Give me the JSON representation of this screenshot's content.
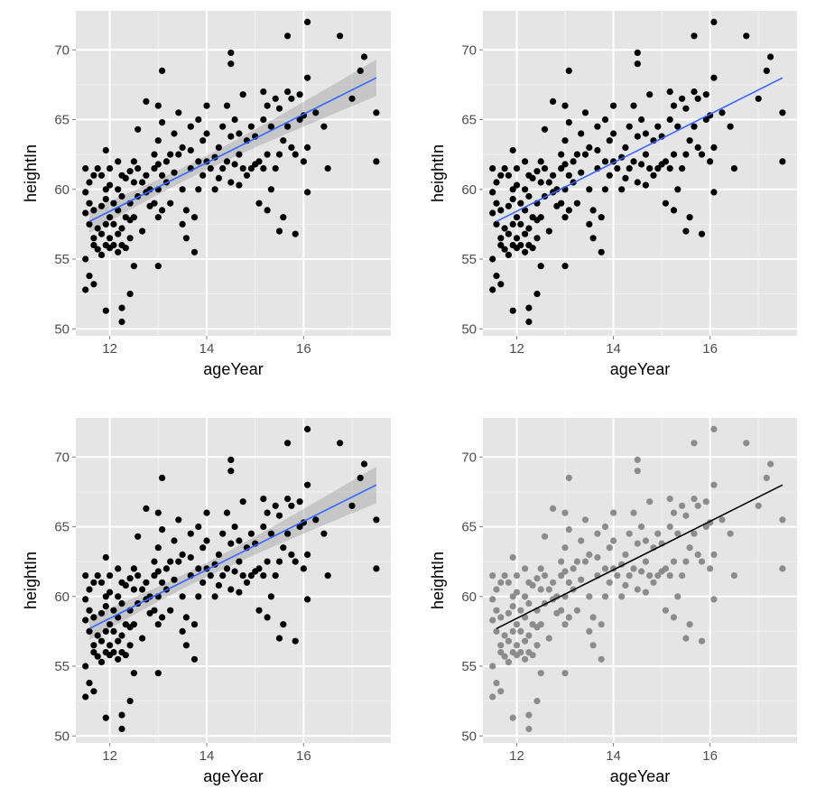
{
  "chart_data": [
    {
      "type": "scatter",
      "panel": "top-left",
      "xlabel": "ageYear",
      "ylabel": "heightIn",
      "xlim": [
        11.3,
        17.8
      ],
      "ylim": [
        49.5,
        72.8
      ],
      "x_ticks": [
        12,
        14,
        16
      ],
      "y_ticks": [
        50,
        55,
        60,
        65,
        70
      ],
      "grid": true,
      "point_color": "#000000",
      "trend_line": {
        "x": [
          11.58,
          17.5
        ],
        "y": [
          57.7,
          68.0
        ],
        "color": "#3366FF"
      },
      "confidence_band": true,
      "band_color": "#999999",
      "panel_background": "#E5E5E5"
    },
    {
      "type": "scatter",
      "panel": "top-right",
      "xlabel": "ageYear",
      "ylabel": "heightIn",
      "xlim": [
        11.3,
        17.8
      ],
      "ylim": [
        49.5,
        72.8
      ],
      "x_ticks": [
        12,
        14,
        16
      ],
      "y_ticks": [
        50,
        55,
        60,
        65,
        70
      ],
      "grid": true,
      "point_color": "#000000",
      "trend_line": {
        "x": [
          11.58,
          17.5
        ],
        "y": [
          57.7,
          68.0
        ],
        "color": "#3366FF"
      },
      "confidence_band": false,
      "panel_background": "#E5E5E5"
    },
    {
      "type": "scatter",
      "panel": "bottom-left",
      "xlabel": "ageYear",
      "ylabel": "heightIn",
      "xlim": [
        11.3,
        17.8
      ],
      "ylim": [
        49.5,
        72.8
      ],
      "x_ticks": [
        12,
        14,
        16
      ],
      "y_ticks": [
        50,
        55,
        60,
        65,
        70
      ],
      "grid": true,
      "point_color": "#000000",
      "trend_line": {
        "x": [
          11.58,
          17.5
        ],
        "y": [
          57.7,
          68.0
        ],
        "color": "#3366FF"
      },
      "confidence_band": true,
      "band_color": "#999999",
      "panel_background": "#E5E5E5"
    },
    {
      "type": "scatter",
      "panel": "bottom-right",
      "xlabel": "ageYear",
      "ylabel": "heightIn",
      "xlim": [
        11.3,
        17.8
      ],
      "ylim": [
        49.5,
        72.8
      ],
      "x_ticks": [
        12,
        14,
        16
      ],
      "y_ticks": [
        50,
        55,
        60,
        65,
        70
      ],
      "grid": true,
      "point_color": "#8C8C8C",
      "trend_line": {
        "x": [
          11.58,
          17.5
        ],
        "y": [
          57.7,
          68.0
        ],
        "color": "#000000"
      },
      "confidence_band": false,
      "panel_background": "#E5E5E5"
    }
  ],
  "points": [
    [
      11.5,
      52.8
    ],
    [
      11.58,
      53.8
    ],
    [
      11.67,
      53.2
    ],
    [
      11.75,
      55.7
    ],
    [
      11.92,
      51.3
    ],
    [
      12.25,
      50.5
    ],
    [
      12.25,
      51.5
    ],
    [
      12.42,
      52.5
    ],
    [
      12.5,
      54.5
    ],
    [
      13.0,
      54.5
    ],
    [
      11.5,
      55.0
    ],
    [
      11.58,
      57.5
    ],
    [
      11.5,
      58.3
    ],
    [
      11.58,
      59.0
    ],
    [
      11.5,
      59.8
    ],
    [
      11.58,
      60.5
    ],
    [
      11.5,
      61.5
    ],
    [
      11.67,
      56.0
    ],
    [
      11.67,
      56.5
    ],
    [
      11.67,
      58.5
    ],
    [
      11.67,
      61.0
    ],
    [
      11.75,
      61.5
    ],
    [
      11.75,
      57.2
    ],
    [
      11.83,
      55.3
    ],
    [
      11.83,
      56.8
    ],
    [
      11.83,
      58.8
    ],
    [
      11.83,
      61.0
    ],
    [
      11.92,
      56.0
    ],
    [
      11.92,
      57.5
    ],
    [
      11.92,
      59.3
    ],
    [
      11.92,
      60.0
    ],
    [
      11.92,
      62.8
    ],
    [
      12.0,
      55.8
    ],
    [
      12.0,
      56.5
    ],
    [
      12.0,
      58.0
    ],
    [
      12.0,
      60.3
    ],
    [
      12.0,
      61.5
    ],
    [
      12.08,
      56.0
    ],
    [
      12.08,
      57.5
    ],
    [
      12.08,
      59.0
    ],
    [
      12.17,
      55.5
    ],
    [
      12.17,
      56.8
    ],
    [
      12.17,
      58.5
    ],
    [
      12.17,
      60.0
    ],
    [
      12.17,
      62.0
    ],
    [
      12.25,
      56.0
    ],
    [
      12.25,
      57.2
    ],
    [
      12.25,
      59.5
    ],
    [
      12.25,
      61.0
    ],
    [
      12.33,
      55.8
    ],
    [
      12.33,
      58.0
    ],
    [
      12.33,
      60.8
    ],
    [
      12.42,
      56.5
    ],
    [
      12.42,
      57.8
    ],
    [
      12.42,
      59.0
    ],
    [
      12.42,
      61.3
    ],
    [
      12.5,
      58.0
    ],
    [
      12.5,
      60.5
    ],
    [
      12.5,
      62.0
    ],
    [
      12.58,
      59.5
    ],
    [
      12.58,
      61.5
    ],
    [
      12.58,
      64.3
    ],
    [
      12.67,
      57.0
    ],
    [
      12.67,
      60.5
    ],
    [
      12.75,
      59.8
    ],
    [
      12.75,
      61.0
    ],
    [
      12.75,
      66.3
    ],
    [
      12.83,
      58.8
    ],
    [
      12.83,
      60.0
    ],
    [
      12.92,
      61.5
    ],
    [
      12.92,
      62.5
    ],
    [
      13.0,
      58.0
    ],
    [
      13.0,
      60.0
    ],
    [
      13.0,
      61.8
    ],
    [
      13.0,
      63.5
    ],
    [
      13.0,
      66.0
    ],
    [
      13.08,
      58.5
    ],
    [
      13.08,
      61.0
    ],
    [
      13.08,
      64.8
    ],
    [
      13.08,
      68.5
    ],
    [
      13.17,
      60.5
    ],
    [
      13.17,
      62.0
    ],
    [
      13.25,
      59.0
    ],
    [
      13.33,
      61.2
    ],
    [
      13.33,
      64.0
    ],
    [
      13.42,
      62.5
    ],
    [
      13.42,
      65.5
    ],
    [
      13.5,
      57.5
    ],
    [
      13.5,
      60.0
    ],
    [
      13.5,
      63.0
    ],
    [
      13.58,
      56.5
    ],
    [
      13.58,
      58.5
    ],
    [
      13.67,
      61.5
    ],
    [
      13.67,
      62.8
    ],
    [
      13.67,
      64.5
    ],
    [
      13.75,
      55.5
    ],
    [
      13.75,
      58.0
    ],
    [
      13.83,
      60.0
    ],
    [
      13.83,
      62.0
    ],
    [
      13.83,
      65.0
    ],
    [
      13.92,
      61.0
    ],
    [
      13.92,
      63.5
    ],
    [
      14.0,
      62.0
    ],
    [
      14.0,
      64.0
    ],
    [
      14.0,
      66.0
    ],
    [
      14.08,
      61.5
    ],
    [
      14.17,
      62.3
    ],
    [
      14.25,
      60.8
    ],
    [
      14.25,
      63.0
    ],
    [
      14.33,
      61.5
    ],
    [
      14.33,
      64.5
    ],
    [
      14.42,
      62.0
    ],
    [
      14.42,
      66.0
    ],
    [
      14.5,
      60.5
    ],
    [
      14.5,
      63.8
    ],
    [
      14.5,
      69.0
    ],
    [
      14.58,
      61.8
    ],
    [
      14.58,
      65.0
    ],
    [
      14.67,
      60.3
    ],
    [
      14.67,
      62.5
    ],
    [
      14.67,
      64.0
    ],
    [
      14.75,
      61.5
    ],
    [
      14.75,
      66.8
    ],
    [
      14.83,
      61.0
    ],
    [
      14.83,
      63.5
    ],
    [
      14.92,
      61.5
    ],
    [
      14.92,
      64.5
    ],
    [
      15.0,
      61.8
    ],
    [
      15.0,
      63.8
    ],
    [
      15.08,
      59.0
    ],
    [
      15.08,
      62.0
    ],
    [
      15.17,
      61.5
    ],
    [
      15.17,
      65.0
    ],
    [
      15.25,
      58.5
    ],
    [
      15.25,
      62.5
    ],
    [
      15.25,
      66.0
    ],
    [
      15.33,
      60.0
    ],
    [
      15.33,
      64.5
    ],
    [
      15.42,
      61.5
    ],
    [
      15.42,
      66.5
    ],
    [
      15.5,
      57.0
    ],
    [
      15.5,
      62.5
    ],
    [
      15.5,
      65.8
    ],
    [
      15.58,
      58.0
    ],
    [
      15.58,
      63.5
    ],
    [
      15.67,
      64.5
    ],
    [
      15.67,
      67.0
    ],
    [
      15.67,
      71.0
    ],
    [
      15.75,
      63.0
    ],
    [
      15.75,
      66.5
    ],
    [
      15.83,
      56.8
    ],
    [
      15.83,
      62.5
    ],
    [
      15.92,
      65.0
    ],
    [
      16.0,
      62.0
    ],
    [
      16.0,
      65.3
    ],
    [
      16.08,
      59.8
    ],
    [
      16.08,
      63.0
    ],
    [
      16.08,
      72.0
    ],
    [
      16.25,
      65.5
    ],
    [
      16.42,
      64.5
    ],
    [
      16.5,
      61.5
    ],
    [
      16.75,
      71.0
    ],
    [
      17.0,
      66.5
    ],
    [
      17.17,
      68.5
    ],
    [
      17.25,
      69.5
    ],
    [
      17.5,
      62.0
    ],
    [
      17.5,
      65.5
    ],
    [
      14.17,
      60.0
    ],
    [
      14.5,
      69.8
    ],
    [
      15.17,
      67.0
    ],
    [
      12.92,
      59.0
    ],
    [
      13.25,
      62.5
    ],
    [
      15.92,
      66.8
    ],
    [
      16.08,
      68.0
    ]
  ]
}
